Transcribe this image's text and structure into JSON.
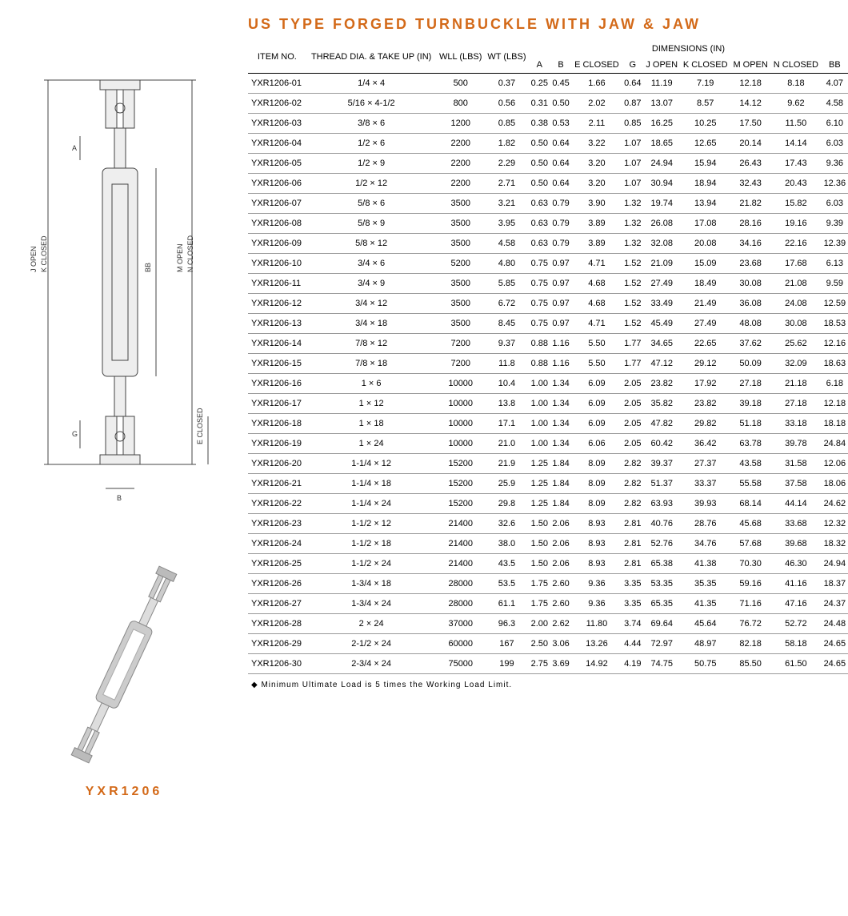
{
  "title": "US TYPE FORGED TURNBUCKLE WITH JAW & JAW",
  "product_code": "YXR1206",
  "footnote": "Minimum Ultimate Load is 5 times the Working Load Limit.",
  "diagram_labels": {
    "j_open": "J OPEN",
    "k_closed": "K CLOSED",
    "bb": "BB",
    "m_open": "M OPEN",
    "n_closed": "N CLOSED",
    "a": "A",
    "g": "G",
    "b": "B",
    "e_closed": "E CLOSED"
  },
  "table": {
    "headers": {
      "item_no": "ITEM NO.",
      "thread": "THREAD DIA. & TAKE UP (IN)",
      "wll": "WLL (LBS)",
      "wt": "WT (LBS)",
      "dimensions": "DIMENSIONS (IN)",
      "a": "A",
      "b": "B",
      "e_closed": "E CLOSED",
      "g": "G",
      "j_open": "J OPEN",
      "k_closed": "K CLOSED",
      "m_open": "M OPEN",
      "n_closed": "N CLOSED",
      "bb": "BB"
    },
    "rows": [
      [
        "YXR1206-01",
        "1/4 × 4",
        "500",
        "0.37",
        "0.25",
        "0.45",
        "1.66",
        "0.64",
        "11.19",
        "7.19",
        "12.18",
        "8.18",
        "4.07"
      ],
      [
        "YXR1206-02",
        "5/16 × 4-1/2",
        "800",
        "0.56",
        "0.31",
        "0.50",
        "2.02",
        "0.87",
        "13.07",
        "8.57",
        "14.12",
        "9.62",
        "4.58"
      ],
      [
        "YXR1206-03",
        "3/8 × 6",
        "1200",
        "0.85",
        "0.38",
        "0.53",
        "2.11",
        "0.85",
        "16.25",
        "10.25",
        "17.50",
        "11.50",
        "6.10"
      ],
      [
        "YXR1206-04",
        "1/2 × 6",
        "2200",
        "1.82",
        "0.50",
        "0.64",
        "3.22",
        "1.07",
        "18.65",
        "12.65",
        "20.14",
        "14.14",
        "6.03"
      ],
      [
        "YXR1206-05",
        "1/2 × 9",
        "2200",
        "2.29",
        "0.50",
        "0.64",
        "3.20",
        "1.07",
        "24.94",
        "15.94",
        "26.43",
        "17.43",
        "9.36"
      ],
      [
        "YXR1206-06",
        "1/2 × 12",
        "2200",
        "2.71",
        "0.50",
        "0.64",
        "3.20",
        "1.07",
        "30.94",
        "18.94",
        "32.43",
        "20.43",
        "12.36"
      ],
      [
        "YXR1206-07",
        "5/8 × 6",
        "3500",
        "3.21",
        "0.63",
        "0.79",
        "3.90",
        "1.32",
        "19.74",
        "13.94",
        "21.82",
        "15.82",
        "6.03"
      ],
      [
        "YXR1206-08",
        "5/8 × 9",
        "3500",
        "3.95",
        "0.63",
        "0.79",
        "3.89",
        "1.32",
        "26.08",
        "17.08",
        "28.16",
        "19.16",
        "9.39"
      ],
      [
        "YXR1206-09",
        "5/8 × 12",
        "3500",
        "4.58",
        "0.63",
        "0.79",
        "3.89",
        "1.32",
        "32.08",
        "20.08",
        "34.16",
        "22.16",
        "12.39"
      ],
      [
        "YXR1206-10",
        "3/4 × 6",
        "5200",
        "4.80",
        "0.75",
        "0.97",
        "4.71",
        "1.52",
        "21.09",
        "15.09",
        "23.68",
        "17.68",
        "6.13"
      ],
      [
        "YXR1206-11",
        "3/4 × 9",
        "3500",
        "5.85",
        "0.75",
        "0.97",
        "4.68",
        "1.52",
        "27.49",
        "18.49",
        "30.08",
        "21.08",
        "9.59"
      ],
      [
        "YXR1206-12",
        "3/4 × 12",
        "3500",
        "6.72",
        "0.75",
        "0.97",
        "4.68",
        "1.52",
        "33.49",
        "21.49",
        "36.08",
        "24.08",
        "12.59"
      ],
      [
        "YXR1206-13",
        "3/4 × 18",
        "3500",
        "8.45",
        "0.75",
        "0.97",
        "4.71",
        "1.52",
        "45.49",
        "27.49",
        "48.08",
        "30.08",
        "18.53"
      ],
      [
        "YXR1206-14",
        "7/8 × 12",
        "7200",
        "9.37",
        "0.88",
        "1.16",
        "5.50",
        "1.77",
        "34.65",
        "22.65",
        "37.62",
        "25.62",
        "12.16"
      ],
      [
        "YXR1206-15",
        "7/8 × 18",
        "7200",
        "11.8",
        "0.88",
        "1.16",
        "5.50",
        "1.77",
        "47.12",
        "29.12",
        "50.09",
        "32.09",
        "18.63"
      ],
      [
        "YXR1206-16",
        "1 × 6",
        "10000",
        "10.4",
        "1.00",
        "1.34",
        "6.09",
        "2.05",
        "23.82",
        "17.92",
        "27.18",
        "21.18",
        "6.18"
      ],
      [
        "YXR1206-17",
        "1 × 12",
        "10000",
        "13.8",
        "1.00",
        "1.34",
        "6.09",
        "2.05",
        "35.82",
        "23.82",
        "39.18",
        "27.18",
        "12.18"
      ],
      [
        "YXR1206-18",
        "1 × 18",
        "10000",
        "17.1",
        "1.00",
        "1.34",
        "6.09",
        "2.05",
        "47.82",
        "29.82",
        "51.18",
        "33.18",
        "18.18"
      ],
      [
        "YXR1206-19",
        "1 × 24",
        "10000",
        "21.0",
        "1.00",
        "1.34",
        "6.06",
        "2.05",
        "60.42",
        "36.42",
        "63.78",
        "39.78",
        "24.84"
      ],
      [
        "YXR1206-20",
        "1-1/4 × 12",
        "15200",
        "21.9",
        "1.25",
        "1.84",
        "8.09",
        "2.82",
        "39.37",
        "27.37",
        "43.58",
        "31.58",
        "12.06"
      ],
      [
        "YXR1206-21",
        "1-1/4 × 18",
        "15200",
        "25.9",
        "1.25",
        "1.84",
        "8.09",
        "2.82",
        "51.37",
        "33.37",
        "55.58",
        "37.58",
        "18.06"
      ],
      [
        "YXR1206-22",
        "1-1/4 × 24",
        "15200",
        "29.8",
        "1.25",
        "1.84",
        "8.09",
        "2.82",
        "63.93",
        "39.93",
        "68.14",
        "44.14",
        "24.62"
      ],
      [
        "YXR1206-23",
        "1-1/2 × 12",
        "21400",
        "32.6",
        "1.50",
        "2.06",
        "8.93",
        "2.81",
        "40.76",
        "28.76",
        "45.68",
        "33.68",
        "12.32"
      ],
      [
        "YXR1206-24",
        "1-1/2 × 18",
        "21400",
        "38.0",
        "1.50",
        "2.06",
        "8.93",
        "2.81",
        "52.76",
        "34.76",
        "57.68",
        "39.68",
        "18.32"
      ],
      [
        "YXR1206-25",
        "1-1/2 × 24",
        "21400",
        "43.5",
        "1.50",
        "2.06",
        "8.93",
        "2.81",
        "65.38",
        "41.38",
        "70.30",
        "46.30",
        "24.94"
      ],
      [
        "YXR1206-26",
        "1-3/4 × 18",
        "28000",
        "53.5",
        "1.75",
        "2.60",
        "9.36",
        "3.35",
        "53.35",
        "35.35",
        "59.16",
        "41.16",
        "18.37"
      ],
      [
        "YXR1206-27",
        "1-3/4 × 24",
        "28000",
        "61.1",
        "1.75",
        "2.60",
        "9.36",
        "3.35",
        "65.35",
        "41.35",
        "71.16",
        "47.16",
        "24.37"
      ],
      [
        "YXR1206-28",
        "2 × 24",
        "37000",
        "96.3",
        "2.00",
        "2.62",
        "11.80",
        "3.74",
        "69.64",
        "45.64",
        "76.72",
        "52.72",
        "24.48"
      ],
      [
        "YXR1206-29",
        "2-1/2 × 24",
        "60000",
        "167",
        "2.50",
        "3.06",
        "13.26",
        "4.44",
        "72.97",
        "48.97",
        "82.18",
        "58.18",
        "24.65"
      ],
      [
        "YXR1206-30",
        "2-3/4 × 24",
        "75000",
        "199",
        "2.75",
        "3.69",
        "14.92",
        "4.19",
        "74.75",
        "50.75",
        "85.50",
        "61.50",
        "24.65"
      ]
    ]
  },
  "colors": {
    "accent": "#d36918",
    "border": "#999999",
    "header_border": "#000000",
    "text": "#333333"
  }
}
